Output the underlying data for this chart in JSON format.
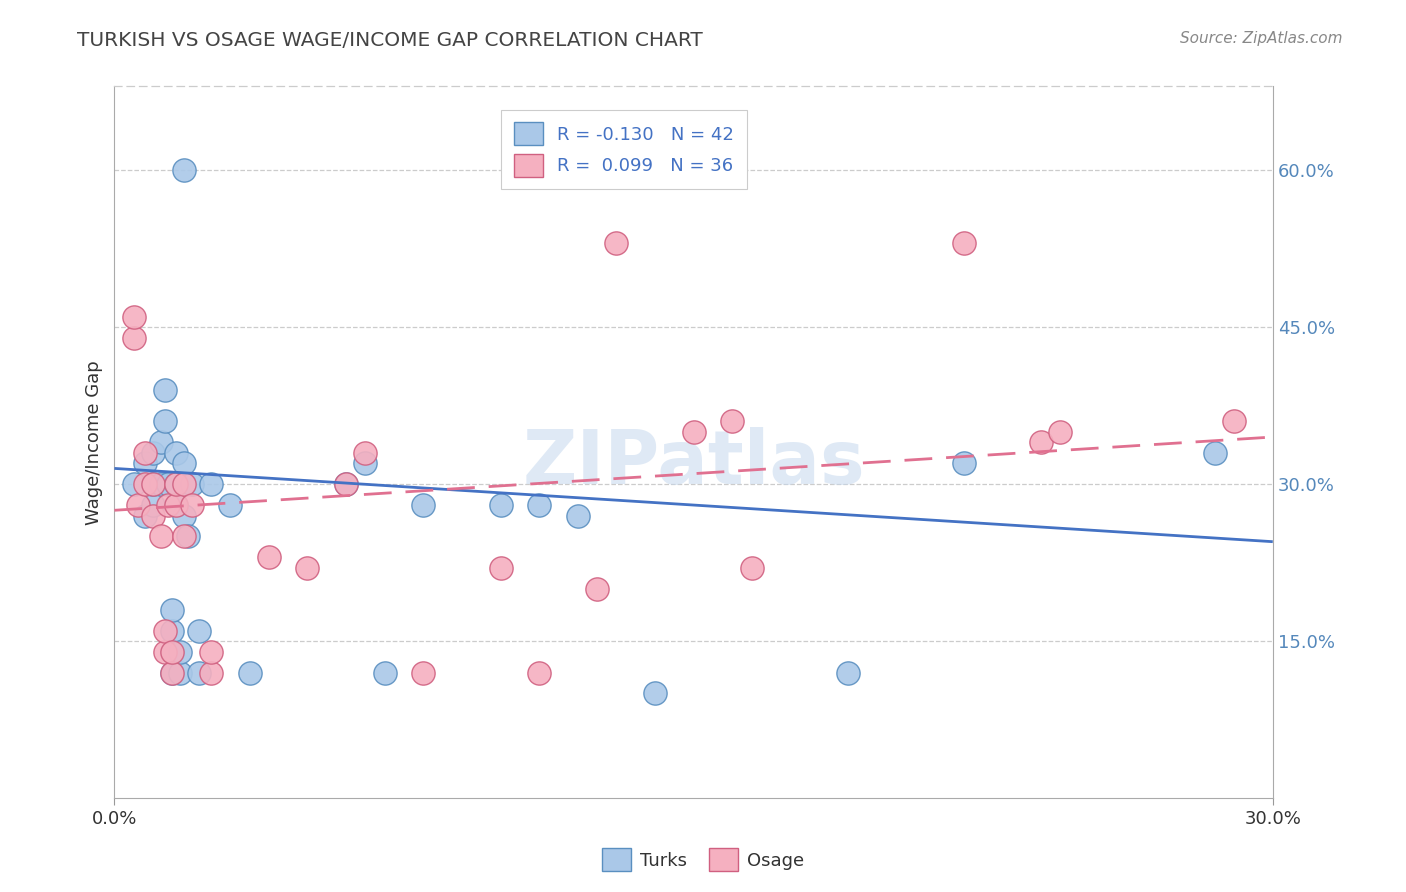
{
  "title": "TURKISH VS OSAGE WAGE/INCOME GAP CORRELATION CHART",
  "source": "Source: ZipAtlas.com",
  "ylabel": "Wage/Income Gap",
  "right_yticks": [
    "60.0%",
    "45.0%",
    "30.0%",
    "15.0%"
  ],
  "right_ytick_vals": [
    0.6,
    0.45,
    0.3,
    0.15
  ],
  "xmin": 0.0,
  "xmax": 0.3,
  "ymin": 0.0,
  "ymax": 0.68,
  "watermark": "ZIPatlas",
  "legend_label_blue": "R = -0.130   N = 42",
  "legend_label_pink": "R =  0.099   N = 36",
  "turks_color": "#aac8e8",
  "turks_edge": "#5a8fc0",
  "osage_color": "#f5b0c0",
  "osage_edge": "#d06080",
  "line_blue": "#4472c4",
  "line_pink": "#e07090",
  "turks_x": [
    0.018,
    0.005,
    0.008,
    0.008,
    0.01,
    0.01,
    0.01,
    0.012,
    0.012,
    0.013,
    0.013,
    0.014,
    0.015,
    0.015,
    0.015,
    0.015,
    0.016,
    0.016,
    0.016,
    0.017,
    0.017,
    0.018,
    0.018,
    0.018,
    0.019,
    0.02,
    0.022,
    0.022,
    0.025,
    0.03,
    0.035,
    0.06,
    0.065,
    0.07,
    0.08,
    0.1,
    0.11,
    0.12,
    0.14,
    0.19,
    0.22,
    0.285
  ],
  "turks_y": [
    0.6,
    0.3,
    0.27,
    0.32,
    0.28,
    0.3,
    0.33,
    0.3,
    0.34,
    0.36,
    0.39,
    0.3,
    0.12,
    0.14,
    0.16,
    0.18,
    0.28,
    0.3,
    0.33,
    0.12,
    0.14,
    0.27,
    0.3,
    0.32,
    0.25,
    0.3,
    0.12,
    0.16,
    0.3,
    0.28,
    0.12,
    0.3,
    0.32,
    0.12,
    0.28,
    0.28,
    0.28,
    0.27,
    0.1,
    0.12,
    0.32,
    0.33
  ],
  "osage_x": [
    0.005,
    0.005,
    0.006,
    0.008,
    0.008,
    0.01,
    0.01,
    0.012,
    0.013,
    0.013,
    0.014,
    0.015,
    0.015,
    0.016,
    0.016,
    0.018,
    0.018,
    0.02,
    0.025,
    0.025,
    0.04,
    0.05,
    0.06,
    0.065,
    0.08,
    0.1,
    0.11,
    0.125,
    0.13,
    0.15,
    0.16,
    0.165,
    0.22,
    0.24,
    0.245,
    0.29
  ],
  "osage_y": [
    0.44,
    0.46,
    0.28,
    0.3,
    0.33,
    0.27,
    0.3,
    0.25,
    0.14,
    0.16,
    0.28,
    0.12,
    0.14,
    0.28,
    0.3,
    0.25,
    0.3,
    0.28,
    0.12,
    0.14,
    0.23,
    0.22,
    0.3,
    0.33,
    0.12,
    0.22,
    0.12,
    0.2,
    0.53,
    0.35,
    0.36,
    0.22,
    0.53,
    0.34,
    0.35,
    0.36
  ],
  "background_color": "#ffffff",
  "grid_color": "#cccccc",
  "title_color": "#444444",
  "right_axis_color": "#5588bb"
}
